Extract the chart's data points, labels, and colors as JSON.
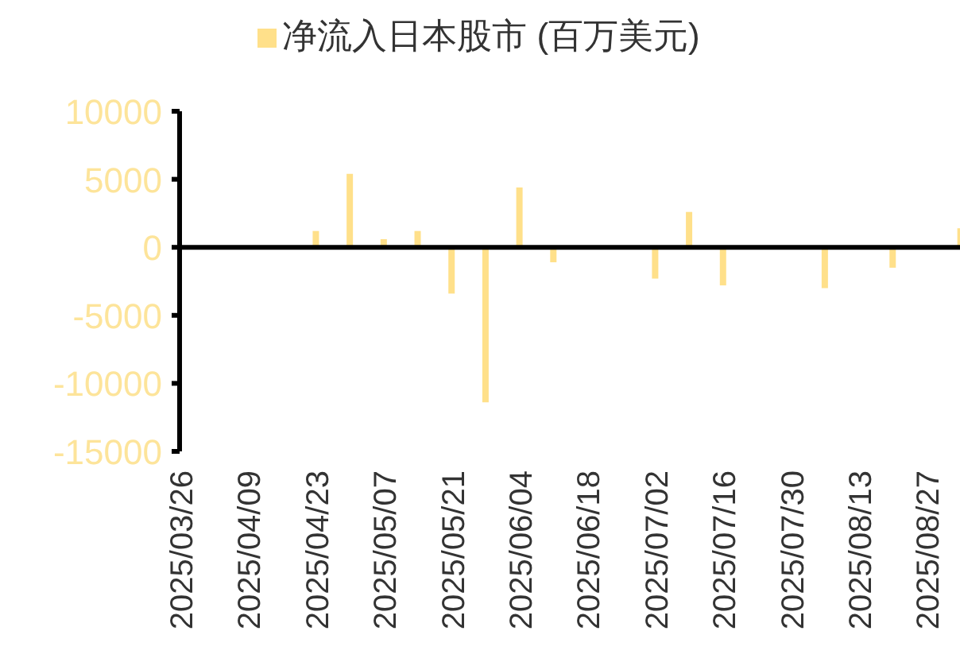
{
  "chart_data": {
    "type": "bar",
    "categories": [
      "2025/03/26",
      null,
      "2025/04/09",
      null,
      "2025/04/23",
      null,
      "2025/05/07",
      null,
      "2025/05/21",
      null,
      "2025/06/04",
      null,
      "2025/06/18",
      null,
      "2025/07/02",
      null,
      "2025/07/16",
      null,
      "2025/07/30",
      null,
      "2025/08/13",
      null,
      "2025/08/27",
      null
    ],
    "series": [
      {
        "name": "净流入日本股市 (百万美元)",
        "color": "#ffe08a",
        "values": [
          0,
          0,
          0,
          0,
          1200,
          5400,
          600,
          1200,
          -3400,
          -11400,
          4400,
          -1100,
          0,
          0,
          -2300,
          2600,
          -2800,
          0,
          0,
          -3000,
          0,
          -1500,
          0,
          1400
        ]
      }
    ],
    "ylim": [
      -15000,
      10000
    ],
    "yticks": [
      -15000,
      -10000,
      -5000,
      0,
      5000,
      10000
    ],
    "legend": "top"
  }
}
